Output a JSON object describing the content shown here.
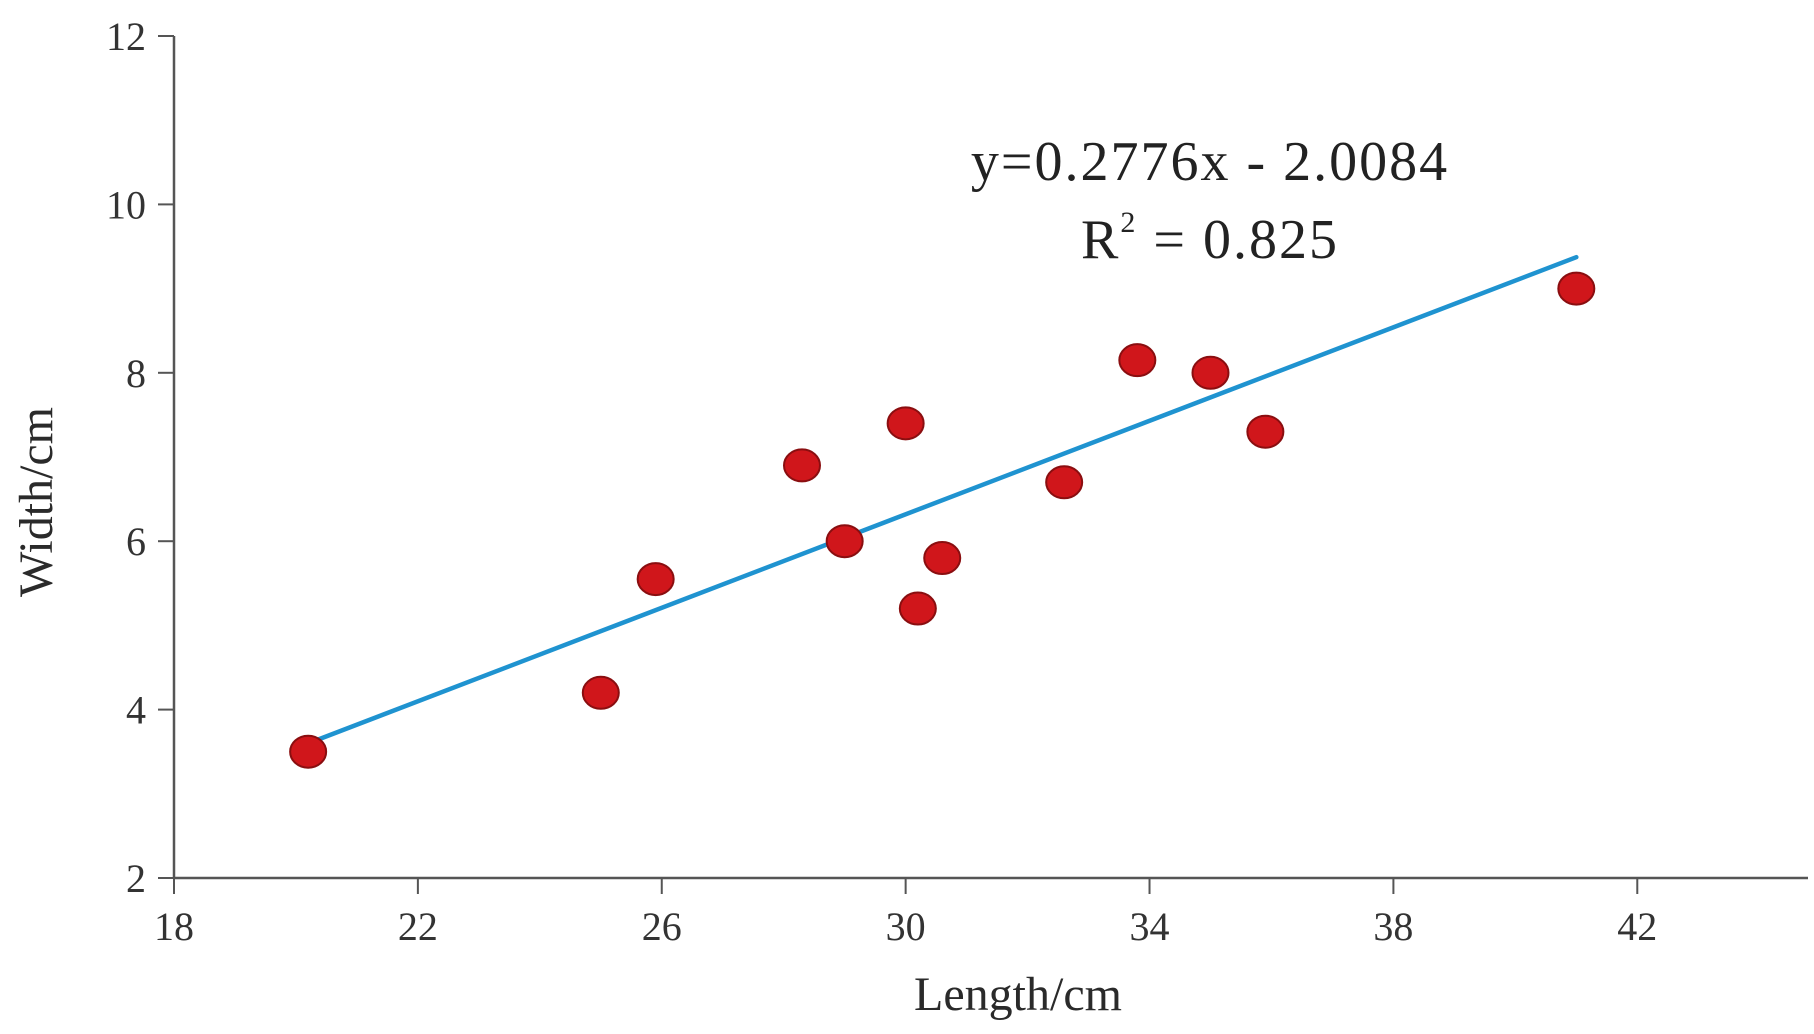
{
  "chart_data": {
    "type": "scatter",
    "xlabel": "Length/cm",
    "ylabel": "Width/cm",
    "xlim": [
      18,
      44.8
    ],
    "ylim": [
      2,
      12
    ],
    "xticks": [
      18,
      22,
      26,
      30,
      34,
      38,
      42
    ],
    "yticks": [
      2,
      4,
      6,
      8,
      10,
      12
    ],
    "grid": false,
    "points": [
      {
        "x": 20.2,
        "y": 3.5
      },
      {
        "x": 25.0,
        "y": 4.2
      },
      {
        "x": 25.9,
        "y": 5.55
      },
      {
        "x": 28.3,
        "y": 6.9
      },
      {
        "x": 29.0,
        "y": 6.0
      },
      {
        "x": 30.0,
        "y": 7.4
      },
      {
        "x": 30.2,
        "y": 5.2
      },
      {
        "x": 30.6,
        "y": 5.8
      },
      {
        "x": 32.6,
        "y": 6.7
      },
      {
        "x": 33.8,
        "y": 8.15
      },
      {
        "x": 35.0,
        "y": 8.0
      },
      {
        "x": 35.9,
        "y": 7.3
      },
      {
        "x": 41.0,
        "y": 9.0
      }
    ],
    "trendline": {
      "slope": 0.2776,
      "intercept": -2.0084,
      "x_range": [
        20.2,
        41.0
      ],
      "equation_label": "y=0.2776x - 2.0084",
      "r2_prefix": "R",
      "r2_sup": "2",
      "r2_value": " = 0.825"
    },
    "colors": {
      "marker": "#d0161b",
      "marker_edge": "#8a0e10",
      "trendline": "#1f93d0",
      "axis": "#555555"
    }
  }
}
